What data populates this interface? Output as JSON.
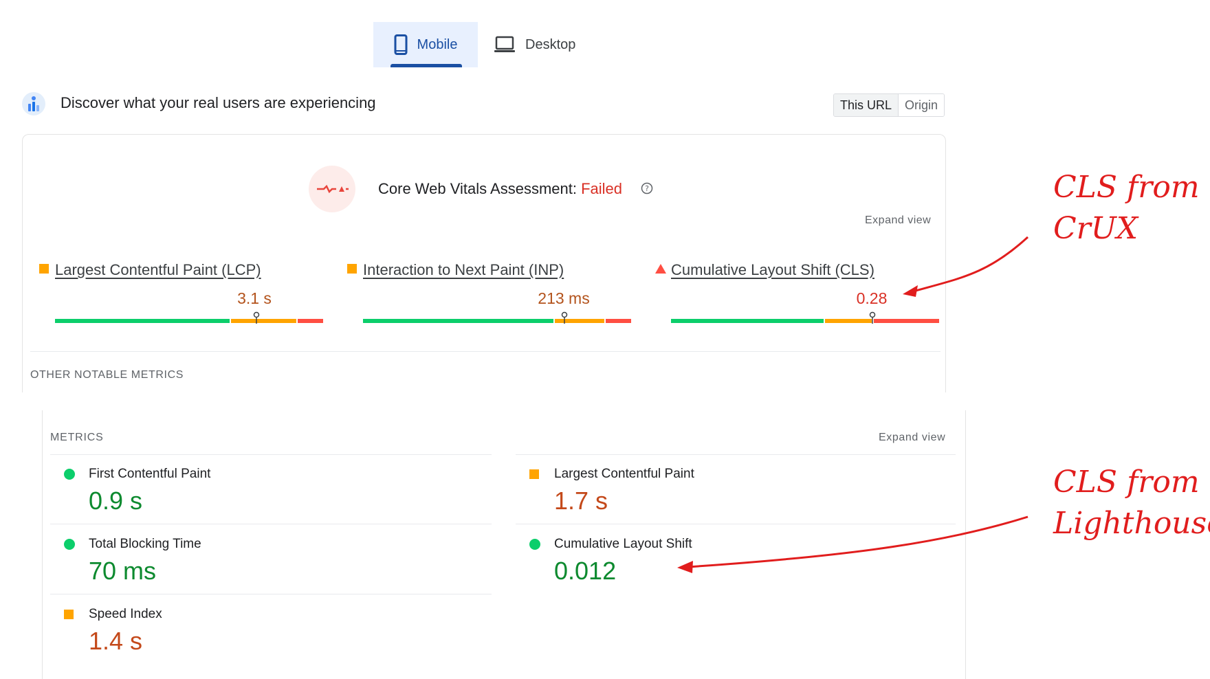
{
  "tabs": {
    "mobile_label": "Mobile",
    "desktop_label": "Desktop"
  },
  "crux": {
    "title": "Discover what your real users are experiencing",
    "url_toggle": {
      "this_url": "This URL",
      "origin": "Origin"
    },
    "assessment": {
      "label": "Core Web Vitals Assessment: ",
      "status": "Failed"
    },
    "expand_view": "Expand view",
    "metrics": [
      {
        "label": "Largest Contentful Paint (LCP)",
        "value": "3.1 s",
        "rating": "needs-improvement",
        "good_pct": 65,
        "ni_pct": 25,
        "poor_pct": 10,
        "marker_fraction": 0.75
      },
      {
        "label": "Interaction to Next Paint (INP)",
        "value": "213 ms",
        "rating": "needs-improvement",
        "good_pct": 71,
        "ni_pct": 19,
        "poor_pct": 10,
        "marker_fraction": 0.75
      },
      {
        "label": "Cumulative Layout Shift (CLS)",
        "value": "0.28",
        "rating": "poor",
        "good_pct": 57,
        "ni_pct": 18,
        "poor_pct": 25,
        "marker_fraction": 0.75
      }
    ],
    "other_notable": "OTHER NOTABLE METRICS"
  },
  "lighthouse": {
    "title": "METRICS",
    "expand_view": "Expand view",
    "metrics": [
      {
        "name": "First Contentful Paint",
        "value": "0.9 s",
        "rating": "good"
      },
      {
        "name": "Largest Contentful Paint",
        "value": "1.7 s",
        "rating": "average"
      },
      {
        "name": "Total Blocking Time",
        "value": "70 ms",
        "rating": "good"
      },
      {
        "name": "Cumulative Layout Shift",
        "value": "0.012",
        "rating": "good"
      },
      {
        "name": "Speed Index",
        "value": "1.4 s",
        "rating": "average"
      }
    ]
  },
  "annotations": {
    "crux_line1": "CLS from",
    "crux_line2": "CrUX",
    "lh_line1": "CLS from",
    "lh_line2": "Lighthouse"
  },
  "colors": {
    "good": "#0cce6b",
    "needs_improvement": "#ffa400",
    "poor": "#ff4e42",
    "accent": "#1a4fa3",
    "annotation": "#e11d1d"
  }
}
